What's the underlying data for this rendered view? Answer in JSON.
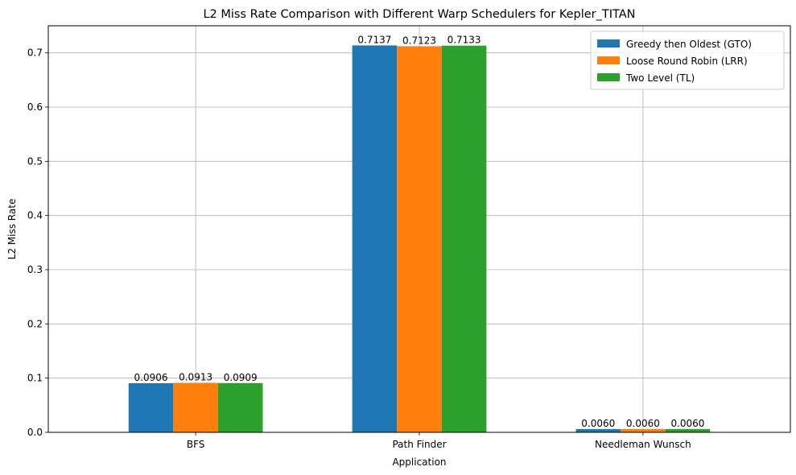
{
  "chart_data": {
    "type": "bar",
    "title": "L2 Miss Rate Comparison with Different Warp Schedulers for Kepler_TITAN",
    "xlabel": "Application",
    "ylabel": "L2 Miss Rate",
    "categories": [
      "BFS",
      "Path Finder",
      "Needleman Wunsch"
    ],
    "series": [
      {
        "name": "Greedy then Oldest (GTO)",
        "color": "#1f77b4",
        "values": [
          0.0906,
          0.7137,
          0.006
        ],
        "labels": [
          "0.0906",
          "0.7137",
          "0.0060"
        ]
      },
      {
        "name": "Loose Round Robin (LRR)",
        "color": "#ff7f0e",
        "values": [
          0.0913,
          0.7123,
          0.006
        ],
        "labels": [
          "0.0913",
          "0.7123",
          "0.0060"
        ]
      },
      {
        "name": "Two Level (TL)",
        "color": "#2ca02c",
        "values": [
          0.0909,
          0.7133,
          0.006
        ],
        "labels": [
          "0.0909",
          "0.7133",
          "0.0060"
        ]
      }
    ],
    "ylim": [
      0,
      0.75
    ],
    "yticks": [
      0.0,
      0.1,
      0.2,
      0.3,
      0.4,
      0.5,
      0.6,
      0.7
    ],
    "ytick_labels": [
      "0.0",
      "0.1",
      "0.2",
      "0.3",
      "0.4",
      "0.5",
      "0.6",
      "0.7"
    ],
    "grid": true,
    "legend_position": "top-right"
  }
}
